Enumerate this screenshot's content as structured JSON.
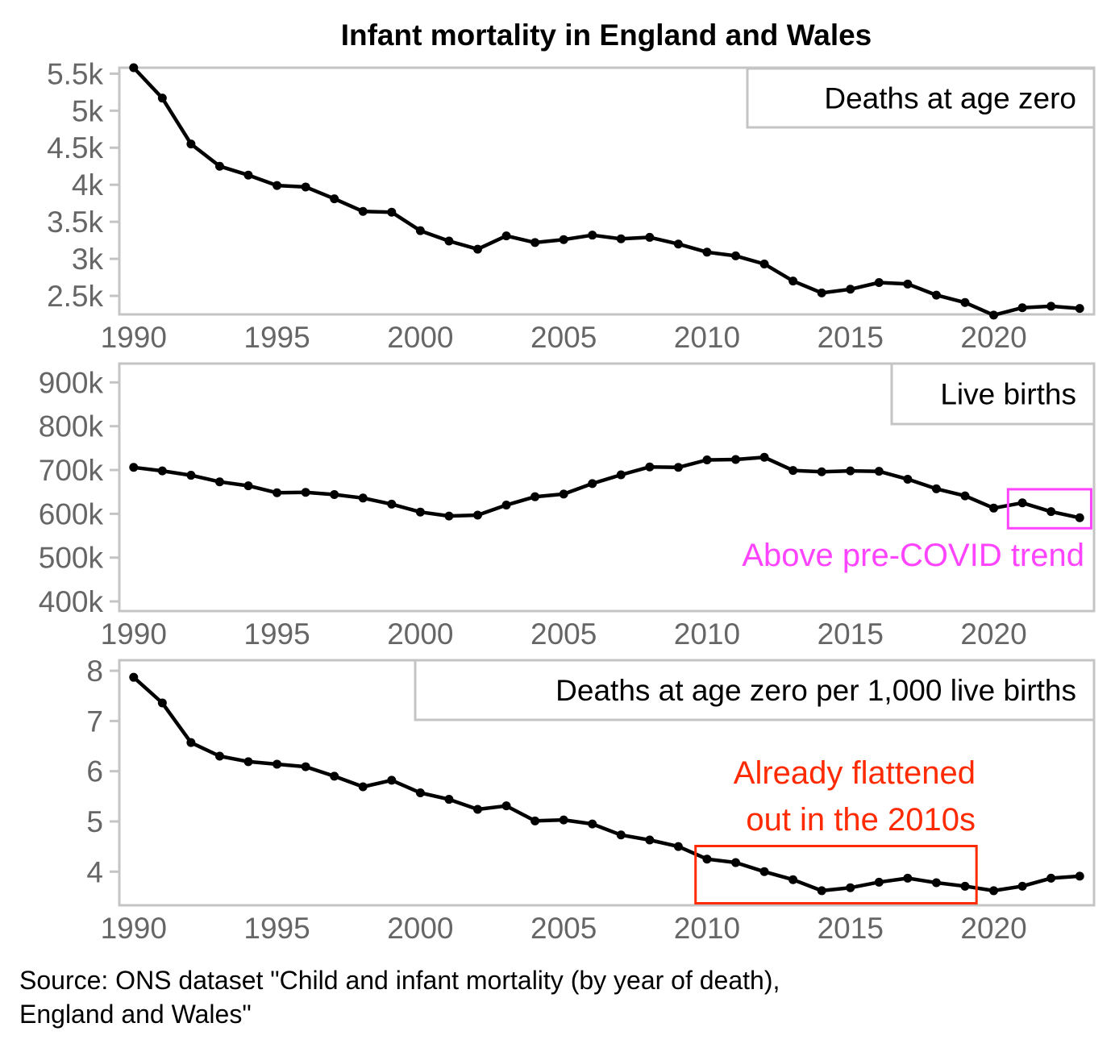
{
  "chart_data": {
    "title": "Infant mortality in England and Wales",
    "source": [
      "Source: ONS dataset \"Child and infant mortality (by year of death),",
      "England and Wales\""
    ],
    "type": "line",
    "x": [
      1990,
      1991,
      1992,
      1993,
      1994,
      1995,
      1996,
      1997,
      1998,
      1999,
      2000,
      2001,
      2002,
      2003,
      2004,
      2005,
      2006,
      2007,
      2008,
      2009,
      2010,
      2011,
      2012,
      2013,
      2014,
      2015,
      2016,
      2017,
      2018,
      2019,
      2020,
      2021,
      2022,
      2023
    ],
    "xlim": [
      1989.5,
      2023.5
    ],
    "xticks": [
      1990,
      1995,
      2000,
      2005,
      2010,
      2015,
      2020
    ],
    "xtick_labels": [
      "1990",
      "1995",
      "2000",
      "2005",
      "2010",
      "2015",
      "2020"
    ],
    "grid": false,
    "line_color": "#000000",
    "frame_color": "#c4c4c4",
    "tick_label_color": "#666666",
    "panels": [
      {
        "label": "Deaths at age zero",
        "type": "line",
        "values": [
          5580,
          5170,
          4550,
          4250,
          4130,
          3990,
          3970,
          3810,
          3640,
          3630,
          3380,
          3240,
          3130,
          3310,
          3220,
          3260,
          3320,
          3270,
          3290,
          3200,
          3090,
          3040,
          2930,
          2700,
          2540,
          2590,
          2680,
          2660,
          2510,
          2410,
          2240,
          2340,
          2360,
          2330
        ],
        "ylim": [
          2250,
          5580
        ],
        "yticks": [
          2500,
          3000,
          3500,
          4000,
          4500,
          5000,
          5500
        ],
        "ytick_labels": [
          "2.5k",
          "3k",
          "3.5k",
          "4k",
          "4.5k",
          "5k",
          "5.5k"
        ],
        "annotations": []
      },
      {
        "label": "Live births",
        "type": "line",
        "values": [
          706000,
          698000,
          688000,
          673000,
          664000,
          648000,
          649000,
          644000,
          636000,
          622000,
          604000,
          595000,
          597000,
          620000,
          639000,
          645000,
          669000,
          689000,
          707000,
          706000,
          723000,
          724000,
          729000,
          699000,
          696000,
          698000,
          697000,
          679000,
          657000,
          641000,
          613000,
          625000,
          605000,
          591000
        ],
        "ylim": [
          378000,
          943000
        ],
        "yticks": [
          400000,
          500000,
          600000,
          700000,
          800000,
          900000
        ],
        "ytick_labels": [
          "400k",
          "500k",
          "600k",
          "700k",
          "800k",
          "900k"
        ],
        "annotations": [
          {
            "text": [
              "Above pre-COVID trend"
            ],
            "color": "#ff44ff",
            "box_x": [
              2020.5,
              2023.4
            ],
            "box_y": [
              567000,
              656000
            ]
          }
        ]
      },
      {
        "label": "Deaths at age zero per 1,000 live births",
        "type": "line",
        "values": [
          7.87,
          7.36,
          6.57,
          6.3,
          6.19,
          6.14,
          6.09,
          5.9,
          5.69,
          5.82,
          5.57,
          5.44,
          5.24,
          5.31,
          5.01,
          5.03,
          4.95,
          4.73,
          4.63,
          4.5,
          4.25,
          4.18,
          4.0,
          3.84,
          3.62,
          3.68,
          3.79,
          3.87,
          3.78,
          3.71,
          3.62,
          3.71,
          3.87,
          3.91
        ],
        "ylim": [
          3.33,
          8.21
        ],
        "yticks": [
          4,
          5,
          6,
          7,
          8
        ],
        "ytick_labels": [
          "4",
          "5",
          "6",
          "7",
          "8"
        ],
        "annotations": [
          {
            "text": [
              "Already flattened",
              "out in the 2010s"
            ],
            "color": "#ff2a00",
            "box_x": [
              2009.6,
              2019.4
            ],
            "box_y": [
              3.37,
              4.51
            ]
          }
        ]
      }
    ]
  }
}
